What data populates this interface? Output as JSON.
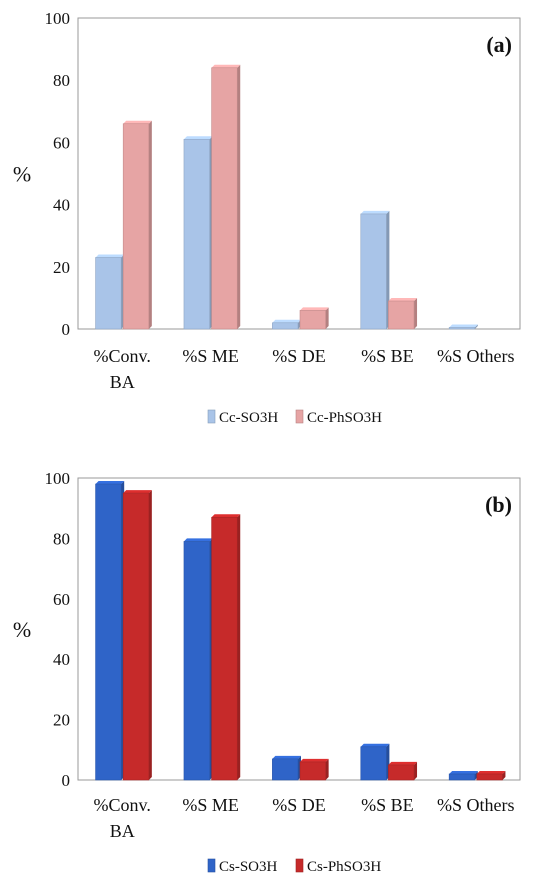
{
  "chart_data": [
    {
      "type": "bar",
      "panel_label": "(a)",
      "ylabel": "%",
      "ylim": [
        0,
        100
      ],
      "yticks": [
        "0",
        "20",
        "40",
        "60",
        "80",
        "100"
      ],
      "categories": [
        [
          "%Conv.",
          "BA"
        ],
        [
          "%S ME"
        ],
        [
          "%S DE"
        ],
        [
          "%S BE"
        ],
        [
          "%S Others"
        ]
      ],
      "series": [
        {
          "name": "Cc-SO3H",
          "values": [
            23,
            61,
            2,
            37,
            0.5
          ],
          "color": "#a9c4e8"
        },
        {
          "name": "Cc-PhSO3H",
          "values": [
            66,
            84,
            6,
            9,
            0
          ],
          "color": "#e6a4a4"
        }
      ],
      "legend_position": "bottom"
    },
    {
      "type": "bar",
      "panel_label": "(b)",
      "ylabel": "%",
      "ylim": [
        0,
        100
      ],
      "yticks": [
        "0",
        "20",
        "40",
        "60",
        "80",
        "100"
      ],
      "categories": [
        [
          "%Conv.",
          "BA"
        ],
        [
          "%S ME"
        ],
        [
          "%S DE"
        ],
        [
          "%S BE"
        ],
        [
          "%S Others"
        ]
      ],
      "series": [
        {
          "name": "Cs-SO3H",
          "values": [
            98,
            79,
            7,
            11,
            2
          ],
          "color": "#2f64c8"
        },
        {
          "name": "Cs-PhSO3H",
          "values": [
            95,
            87,
            6,
            5,
            2
          ],
          "color": "#c62a2a"
        }
      ],
      "legend_position": "bottom"
    }
  ]
}
